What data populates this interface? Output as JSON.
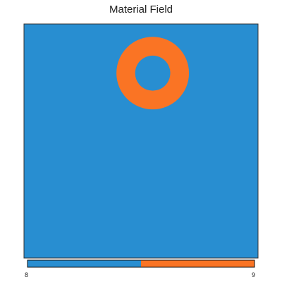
{
  "chart_data": {
    "type": "heatmap",
    "title": "Material Field",
    "colors": {
      "8": "#288ed1",
      "9": "#fa7424"
    },
    "background_value": 8,
    "shapes": [
      {
        "kind": "ring",
        "value": 9,
        "center": [
          0.55,
          0.21
        ],
        "outer_radius": 0.155,
        "inner_radius": 0.075
      }
    ],
    "colorbar": {
      "min_label": "8",
      "max_label": "9"
    }
  }
}
